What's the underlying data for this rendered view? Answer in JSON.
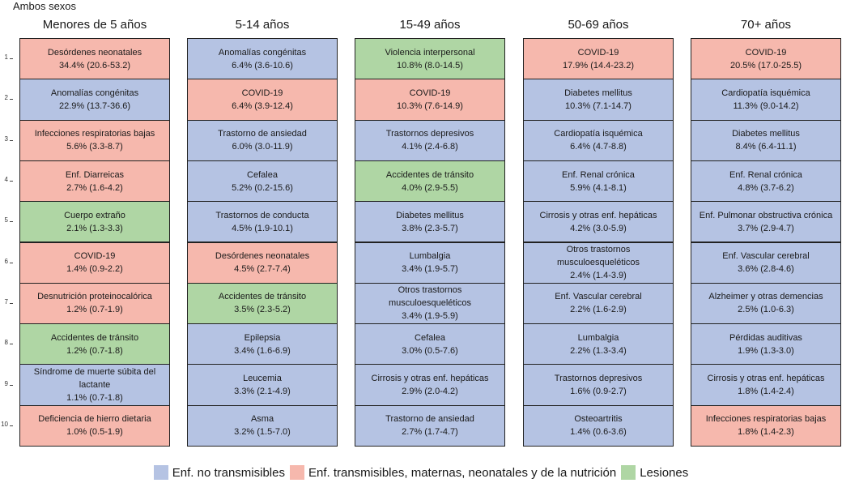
{
  "chart_data": {
    "type": "table",
    "title": "Ambos sexos",
    "rank_labels": [
      "1",
      "2",
      "3",
      "4",
      "5",
      "6",
      "7",
      "8",
      "9",
      "10"
    ],
    "colors": {
      "ncd": "#b5c3e3",
      "communicable": "#f6b8ad",
      "injuries": "#afd6a4"
    },
    "legend": [
      {
        "key": "ncd",
        "label": "Enf. no transmisibles"
      },
      {
        "key": "communicable",
        "label": "Enf. transmisibles, maternas, neonatales y de la nutrición"
      },
      {
        "key": "injuries",
        "label": "Lesiones"
      }
    ],
    "columns": [
      {
        "label": "Menores de 5 años",
        "cells": [
          {
            "name": "Desórdenes neonatales",
            "value": "34.4% (20.6-53.2)",
            "category": "communicable"
          },
          {
            "name": "Anomalías congénitas",
            "value": "22.9% (13.7-36.6)",
            "category": "ncd"
          },
          {
            "name": "Infecciones respiratorias bajas",
            "value": "5.6% (3.3-8.7)",
            "category": "communicable"
          },
          {
            "name": "Enf. Diarreicas",
            "value": "2.7% (1.6-4.2)",
            "category": "communicable"
          },
          {
            "name": "Cuerpo extraño",
            "value": "2.1% (1.3-3.3)",
            "category": "injuries"
          },
          {
            "name": "COVID-19",
            "value": "1.4% (0.9-2.2)",
            "category": "communicable"
          },
          {
            "name": "Desnutrición proteinocalórica",
            "value": "1.2% (0.7-1.9)",
            "category": "communicable"
          },
          {
            "name": "Accidentes de tránsito",
            "value": "1.2% (0.7-1.8)",
            "category": "injuries"
          },
          {
            "name": "Síndrome de muerte súbita del lactante",
            "value": "1.1% (0.7-1.8)",
            "category": "ncd"
          },
          {
            "name": "Deficiencia de hierro dietaria",
            "value": "1.0% (0.5-1.9)",
            "category": "communicable"
          }
        ]
      },
      {
        "label": "5-14 años",
        "cells": [
          {
            "name": "Anomalías congénitas",
            "value": "6.4% (3.6-10.6)",
            "category": "ncd"
          },
          {
            "name": "COVID-19",
            "value": "6.4% (3.9-12.4)",
            "category": "communicable"
          },
          {
            "name": "Trastorno de ansiedad",
            "value": "6.0% (3.0-11.9)",
            "category": "ncd"
          },
          {
            "name": "Cefalea",
            "value": "5.2% (0.2-15.6)",
            "category": "ncd"
          },
          {
            "name": "Trastornos de conducta",
            "value": "4.5% (1.9-10.1)",
            "category": "ncd"
          },
          {
            "name": "Desórdenes neonatales",
            "value": "4.5% (2.7-7.4)",
            "category": "communicable"
          },
          {
            "name": "Accidentes de tránsito",
            "value": "3.5% (2.3-5.2)",
            "category": "injuries"
          },
          {
            "name": "Epilepsia",
            "value": "3.4% (1.6-6.9)",
            "category": "ncd"
          },
          {
            "name": "Leucemia",
            "value": "3.3% (2.1-4.9)",
            "category": "ncd"
          },
          {
            "name": "Asma",
            "value": "3.2% (1.5-7.0)",
            "category": "ncd"
          }
        ]
      },
      {
        "label": "15-49 años",
        "cells": [
          {
            "name": "Violencia interpersonal",
            "value": "10.8% (8.0-14.5)",
            "category": "injuries"
          },
          {
            "name": "COVID-19",
            "value": "10.3% (7.6-14.9)",
            "category": "communicable"
          },
          {
            "name": "Trastornos depresivos",
            "value": "4.1% (2.4-6.8)",
            "category": "ncd"
          },
          {
            "name": "Accidentes de tránsito",
            "value": "4.0% (2.9-5.5)",
            "category": "injuries"
          },
          {
            "name": "Diabetes mellitus",
            "value": "3.8% (2.3-5.7)",
            "category": "ncd"
          },
          {
            "name": "Lumbalgia",
            "value": "3.4% (1.9-5.7)",
            "category": "ncd"
          },
          {
            "name": "Otros trastornos musculoesqueléticos",
            "value": "3.4% (1.9-5.9)",
            "category": "ncd"
          },
          {
            "name": "Cefalea",
            "value": "3.0% (0.5-7.6)",
            "category": "ncd"
          },
          {
            "name": "Cirrosis y otras enf. hepáticas",
            "value": "2.9% (2.0-4.2)",
            "category": "ncd"
          },
          {
            "name": "Trastorno de ansiedad",
            "value": "2.7% (1.7-4.7)",
            "category": "ncd"
          }
        ]
      },
      {
        "label": "50-69 años",
        "cells": [
          {
            "name": "COVID-19",
            "value": "17.9% (14.4-23.2)",
            "category": "communicable"
          },
          {
            "name": "Diabetes mellitus",
            "value": "10.3% (7.1-14.7)",
            "category": "ncd"
          },
          {
            "name": "Cardiopatía isquémica",
            "value": "6.4% (4.7-8.8)",
            "category": "ncd"
          },
          {
            "name": "Enf. Renal crónica",
            "value": "5.9% (4.1-8.1)",
            "category": "ncd"
          },
          {
            "name": "Cirrosis y otras enf. hepáticas",
            "value": "4.2% (3.0-5.9)",
            "category": "ncd"
          },
          {
            "name": "Otros trastornos musculoesqueléticos",
            "value": "2.4% (1.4-3.9)",
            "category": "ncd"
          },
          {
            "name": "Enf. Vascular cerebral",
            "value": "2.2% (1.6-2.9)",
            "category": "ncd"
          },
          {
            "name": "Lumbalgia",
            "value": "2.2% (1.3-3.4)",
            "category": "ncd"
          },
          {
            "name": "Trastornos depresivos",
            "value": "1.6% (0.9-2.7)",
            "category": "ncd"
          },
          {
            "name": "Osteoartritis",
            "value": "1.4% (0.6-3.6)",
            "category": "ncd"
          }
        ]
      },
      {
        "label": "70+ años",
        "cells": [
          {
            "name": "COVID-19",
            "value": "20.5% (17.0-25.5)",
            "category": "communicable"
          },
          {
            "name": "Cardiopatía isquémica",
            "value": "11.3% (9.0-14.2)",
            "category": "ncd"
          },
          {
            "name": "Diabetes mellitus",
            "value": "8.4% (6.4-11.1)",
            "category": "ncd"
          },
          {
            "name": "Enf. Renal crónica",
            "value": "4.8% (3.7-6.2)",
            "category": "ncd"
          },
          {
            "name": "Enf. Pulmonar obstructiva crónica",
            "value": "3.7% (2.9-4.7)",
            "category": "ncd"
          },
          {
            "name": "Enf. Vascular cerebral",
            "value": "3.6% (2.8-4.6)",
            "category": "ncd"
          },
          {
            "name": "Alzheimer y otras demencias",
            "value": "2.5% (1.0-6.3)",
            "category": "ncd"
          },
          {
            "name": "Pérdidas auditivas",
            "value": "1.9% (1.3-3.0)",
            "category": "ncd"
          },
          {
            "name": "Cirrosis y otras enf. hepáticas",
            "value": "1.8% (1.4-2.4)",
            "category": "ncd"
          },
          {
            "name": "Infecciones respiratorias bajas",
            "value": "1.8% (1.4-2.3)",
            "category": "communicable"
          }
        ]
      }
    ]
  }
}
